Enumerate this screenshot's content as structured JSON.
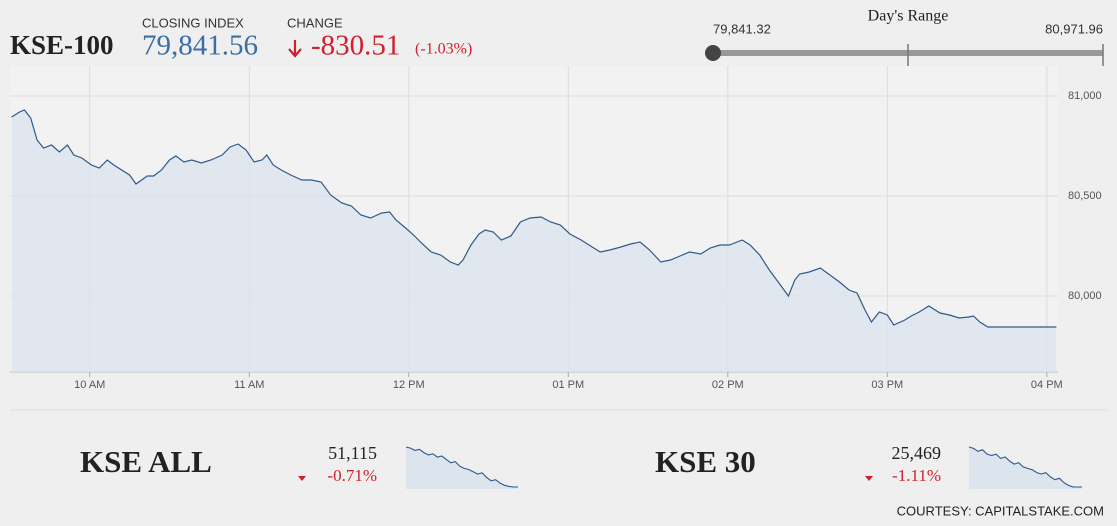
{
  "header": {
    "symbol": "KSE-100",
    "closing_label": "CLOSING INDEX",
    "closing_value": "79,841.56",
    "change_label": "CHANGE",
    "change_value": "-830.51",
    "change_percent": "(-1.03%)"
  },
  "day_range": {
    "label": "Day's Range",
    "low": "79,841.32",
    "high": "80,971.96"
  },
  "indices": [
    {
      "name": "KSE ALL",
      "value": "51,115",
      "change": "-0.71%"
    },
    {
      "name": "KSE 30",
      "value": "25,469",
      "change": "-1.11%"
    }
  ],
  "footer": "COURTESY: CAPITALSTAKE.COM",
  "chart_data": [
    {
      "type": "line",
      "color": "#2f5a88",
      "grid": true,
      "x": [
        9.51,
        9.56,
        9.59,
        9.63,
        9.67,
        9.71,
        9.76,
        9.81,
        9.86,
        9.9,
        9.95,
        10.01,
        10.06,
        10.11,
        10.15,
        10.2,
        10.25,
        10.29,
        10.36,
        10.4,
        10.45,
        10.5,
        10.54,
        10.59,
        10.64,
        10.7,
        10.76,
        10.83,
        10.88,
        10.93,
        10.98,
        11.03,
        11.08,
        11.11,
        11.15,
        11.2,
        11.26,
        11.33,
        11.39,
        11.45,
        11.51,
        11.58,
        11.64,
        11.7,
        11.76,
        11.83,
        11.88,
        11.92,
        11.98,
        12.03,
        12.08,
        12.14,
        12.2,
        12.26,
        12.31,
        12.34,
        12.39,
        12.44,
        12.48,
        12.53,
        12.58,
        12.64,
        12.7,
        12.76,
        12.83,
        12.89,
        12.95,
        13.01,
        13.08,
        13.14,
        13.2,
        13.26,
        13.33,
        13.39,
        13.45,
        13.51,
        13.58,
        13.64,
        13.7,
        13.76,
        13.83,
        13.89,
        13.95,
        14.01,
        14.09,
        14.14,
        14.2,
        14.26,
        14.33,
        14.38,
        14.42,
        14.45,
        14.51,
        14.58,
        14.64,
        14.7,
        14.76,
        14.81,
        14.86,
        14.9,
        14.95,
        15.0,
        15.04,
        15.11,
        15.15,
        15.2,
        15.26,
        15.33,
        15.39,
        15.45,
        15.51,
        15.54,
        15.58,
        15.63,
        16.06
      ],
      "values": [
        80895,
        80920,
        80930,
        80890,
        80780,
        80740,
        80755,
        80720,
        80755,
        80705,
        80690,
        80655,
        80640,
        80680,
        80655,
        80630,
        80605,
        80560,
        80600,
        80600,
        80630,
        80680,
        80700,
        80670,
        80680,
        80665,
        80680,
        80705,
        80745,
        80760,
        80730,
        80670,
        80680,
        80705,
        80655,
        80630,
        80605,
        80580,
        80580,
        80570,
        80505,
        80465,
        80450,
        80405,
        80390,
        80415,
        80420,
        80380,
        80340,
        80305,
        80265,
        80220,
        80205,
        80170,
        80155,
        80180,
        80255,
        80310,
        80330,
        80320,
        80280,
        80300,
        80370,
        80390,
        80395,
        80370,
        80355,
        80310,
        80280,
        80250,
        80220,
        80230,
        80245,
        80260,
        80270,
        80230,
        80170,
        80180,
        80200,
        80220,
        80210,
        80240,
        80255,
        80255,
        80280,
        80255,
        80205,
        80130,
        80055,
        80000,
        80080,
        80110,
        80120,
        80140,
        80105,
        80070,
        80030,
        80015,
        79930,
        79870,
        79920,
        79905,
        79855,
        79880,
        79900,
        79920,
        79950,
        79915,
        79905,
        79890,
        79895,
        79900,
        79870,
        79845,
        79845
      ],
      "xlim": [
        9.5,
        16.07
      ],
      "ylim": [
        79620,
        81150
      ],
      "xticks": [
        {
          "value": 10,
          "label": "10 AM"
        },
        {
          "value": 11,
          "label": "11 AM"
        },
        {
          "value": 12,
          "label": "12 PM"
        },
        {
          "value": 13,
          "label": "01 PM"
        },
        {
          "value": 14,
          "label": "02 PM"
        },
        {
          "value": 15,
          "label": "03 PM"
        },
        {
          "value": 16,
          "label": "04 PM"
        }
      ],
      "yticks": [
        {
          "value": 80000,
          "label": "80,000"
        },
        {
          "value": 80500,
          "label": "80,500"
        },
        {
          "value": 81000,
          "label": "81,000"
        }
      ]
    },
    {
      "type": "sparkline",
      "color": "#2f5a88",
      "values": [
        51470,
        51460,
        51440,
        51450,
        51420,
        51400,
        51410,
        51380,
        51390,
        51360,
        51330,
        51340,
        51300,
        51280,
        51270,
        51250,
        51230,
        51240,
        51200,
        51170,
        51180,
        51150,
        51130,
        51120,
        51115,
        51115
      ]
    },
    {
      "type": "sparkline",
      "color": "#2f5a88",
      "values": [
        25750,
        25740,
        25720,
        25730,
        25700,
        25690,
        25700,
        25670,
        25680,
        25650,
        25630,
        25640,
        25610,
        25600,
        25590,
        25570,
        25560,
        25570,
        25540,
        25520,
        25530,
        25500,
        25480,
        25470,
        25469,
        25469
      ]
    }
  ]
}
